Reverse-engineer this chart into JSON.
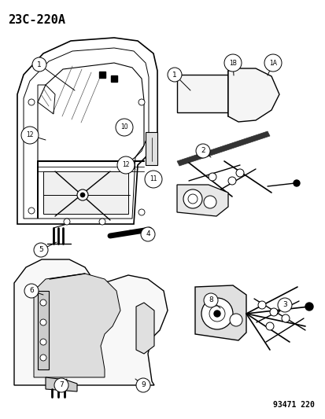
{
  "title_code": "23C-220A",
  "part_number": "93471 220",
  "bg": "#ffffff",
  "lc": "#000000",
  "fig_width": 4.14,
  "fig_height": 5.33,
  "dpi": 100
}
